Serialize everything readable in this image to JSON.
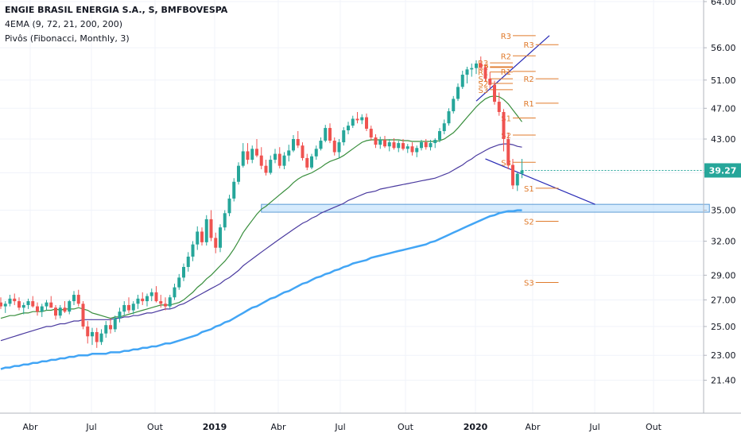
{
  "header": {
    "title": "ENGIE BRASIL ENERGIA S.A., S, BMFBOVESPA",
    "indicator_ema": "4EMA (9, 72, 21, 200, 200)",
    "indicator_pivots": "Pivôs (Fibonacci, Monthly, 3)"
  },
  "colors": {
    "up": "#26a69a",
    "down": "#ef5350",
    "ema_fast": "#f4a9a0",
    "ema_21": "#388e3c",
    "ema_72": "#4a3a9f",
    "ema_200": "#42a5f5",
    "trendline": "#2729b5",
    "pivot": "#e07b2c",
    "zone_fill": "#bbdefb",
    "zone_border": "#5b9bd5",
    "price_label_bg": "#26a69a"
  },
  "chart_data": {
    "type": "candlestick",
    "y_scale": "log",
    "ylim": [
      20.0,
      64.0
    ],
    "y_ticks": [
      "64.00",
      "56.00",
      "51.00",
      "47.00",
      "43.00",
      "39.00",
      "35.00",
      "32.00",
      "29.00",
      "27.00",
      "25.00",
      "23.00",
      "21.40"
    ],
    "x_ticks": [
      "Abr",
      "Jul",
      "Out",
      "2019",
      "Abr",
      "Jul",
      "Out",
      "2020",
      "Abr",
      "Jul",
      "Out"
    ],
    "bold_x_ticks": [
      "2019",
      "2020"
    ],
    "last_price": "39.27",
    "candles": [
      [
        26.8,
        27.2,
        26.3,
        26.5
      ],
      [
        26.5,
        26.9,
        26.0,
        26.7
      ],
      [
        26.7,
        27.4,
        26.5,
        27.1
      ],
      [
        27.1,
        27.5,
        26.6,
        26.9
      ],
      [
        26.9,
        27.2,
        26.2,
        26.4
      ],
      [
        26.4,
        26.8,
        25.9,
        26.6
      ],
      [
        26.6,
        27.1,
        26.3,
        26.9
      ],
      [
        26.9,
        27.3,
        26.4,
        26.5
      ],
      [
        26.5,
        26.8,
        25.8,
        26.1
      ],
      [
        26.1,
        26.7,
        25.7,
        26.5
      ],
      [
        26.5,
        27.0,
        26.2,
        26.8
      ],
      [
        26.8,
        27.3,
        26.4,
        26.4
      ],
      [
        26.4,
        26.6,
        25.5,
        25.8
      ],
      [
        25.8,
        26.6,
        25.6,
        26.4
      ],
      [
        26.4,
        26.9,
        26.0,
        26.1
      ],
      [
        26.1,
        27.0,
        25.9,
        26.9
      ],
      [
        26.9,
        27.7,
        26.6,
        27.4
      ],
      [
        27.4,
        27.8,
        26.5,
        26.7
      ],
      [
        26.7,
        26.9,
        24.8,
        25.0
      ],
      [
        25.0,
        25.4,
        23.8,
        24.3
      ],
      [
        24.3,
        24.9,
        23.7,
        24.6
      ],
      [
        24.6,
        24.9,
        23.5,
        23.9
      ],
      [
        23.9,
        24.8,
        23.7,
        24.5
      ],
      [
        24.5,
        25.4,
        24.2,
        25.1
      ],
      [
        25.1,
        25.6,
        24.5,
        24.8
      ],
      [
        24.8,
        25.8,
        24.6,
        25.6
      ],
      [
        25.6,
        26.4,
        25.3,
        26.1
      ],
      [
        26.1,
        26.9,
        25.8,
        26.6
      ],
      [
        26.6,
        27.2,
        26.0,
        26.2
      ],
      [
        26.2,
        26.9,
        25.9,
        26.7
      ],
      [
        26.7,
        27.4,
        26.3,
        27.1
      ],
      [
        27.1,
        27.6,
        26.6,
        26.9
      ],
      [
        26.9,
        27.5,
        26.5,
        27.3
      ],
      [
        27.3,
        27.9,
        26.9,
        27.6
      ],
      [
        27.6,
        28.1,
        26.8,
        26.9
      ],
      [
        26.9,
        27.4,
        26.4,
        26.7
      ],
      [
        26.7,
        27.2,
        26.2,
        26.5
      ],
      [
        26.5,
        27.4,
        26.3,
        27.2
      ],
      [
        27.2,
        28.3,
        27.0,
        28.0
      ],
      [
        28.0,
        29.1,
        27.8,
        28.8
      ],
      [
        28.8,
        30.0,
        28.5,
        29.7
      ],
      [
        29.7,
        31.0,
        29.3,
        30.6
      ],
      [
        30.6,
        32.0,
        30.2,
        31.7
      ],
      [
        31.7,
        33.4,
        31.2,
        32.9
      ],
      [
        32.9,
        33.3,
        31.6,
        31.9
      ],
      [
        31.9,
        34.5,
        31.6,
        34.1
      ],
      [
        34.1,
        35.0,
        32.0,
        32.3
      ],
      [
        32.3,
        32.8,
        30.9,
        31.4
      ],
      [
        31.4,
        33.6,
        31.0,
        33.3
      ],
      [
        33.3,
        35.0,
        33.0,
        34.7
      ],
      [
        34.7,
        36.6,
        34.4,
        36.2
      ],
      [
        36.2,
        38.4,
        35.9,
        38.0
      ],
      [
        38.0,
        40.2,
        37.7,
        39.8
      ],
      [
        39.8,
        42.5,
        39.6,
        41.5
      ],
      [
        41.5,
        42.5,
        40.0,
        40.5
      ],
      [
        40.5,
        42.2,
        40.1,
        41.8
      ],
      [
        41.8,
        43.0,
        40.8,
        41.0
      ],
      [
        41.0,
        42.0,
        39.4,
        39.8
      ],
      [
        39.8,
        40.5,
        38.7,
        39.0
      ],
      [
        39.0,
        41.0,
        38.8,
        40.5
      ],
      [
        40.5,
        41.8,
        40.1,
        41.2
      ],
      [
        41.2,
        42.0,
        39.5,
        39.8
      ],
      [
        39.8,
        41.4,
        39.4,
        41.0
      ],
      [
        41.0,
        42.3,
        40.3,
        41.6
      ],
      [
        41.6,
        43.5,
        41.4,
        43.0
      ],
      [
        43.0,
        44.0,
        41.9,
        42.2
      ],
      [
        42.2,
        42.6,
        40.4,
        40.7
      ],
      [
        40.7,
        41.2,
        39.3,
        39.6
      ],
      [
        39.6,
        41.2,
        39.4,
        40.9
      ],
      [
        40.9,
        42.2,
        40.5,
        41.8
      ],
      [
        41.8,
        43.2,
        41.6,
        42.8
      ],
      [
        42.8,
        44.8,
        42.6,
        44.4
      ],
      [
        44.4,
        45.0,
        42.5,
        42.8
      ],
      [
        42.8,
        43.2,
        41.0,
        41.4
      ],
      [
        41.4,
        43.0,
        40.7,
        42.6
      ],
      [
        42.6,
        44.5,
        42.2,
        44.1
      ],
      [
        44.1,
        45.2,
        43.6,
        44.7
      ],
      [
        44.7,
        46.0,
        44.4,
        45.6
      ],
      [
        45.6,
        46.5,
        45.0,
        45.4
      ],
      [
        45.4,
        46.2,
        44.9,
        45.8
      ],
      [
        45.8,
        46.3,
        44.0,
        44.3
      ],
      [
        44.3,
        44.7,
        42.8,
        43.2
      ],
      [
        43.2,
        43.6,
        41.9,
        42.3
      ],
      [
        42.3,
        43.3,
        41.8,
        42.9
      ],
      [
        42.9,
        43.4,
        41.9,
        42.1
      ],
      [
        42.1,
        43.0,
        41.5,
        42.6
      ],
      [
        42.6,
        43.1,
        41.7,
        41.9
      ],
      [
        41.9,
        42.8,
        41.4,
        42.5
      ],
      [
        42.5,
        43.0,
        41.6,
        41.8
      ],
      [
        41.8,
        42.4,
        41.3,
        42.1
      ],
      [
        42.1,
        42.6,
        41.0,
        41.4
      ],
      [
        41.4,
        42.2,
        40.8,
        41.9
      ],
      [
        41.9,
        42.9,
        41.6,
        42.6
      ],
      [
        42.6,
        43.0,
        41.7,
        42.0
      ],
      [
        42.0,
        42.9,
        41.6,
        42.5
      ],
      [
        42.5,
        43.1,
        41.9,
        42.9
      ],
      [
        42.9,
        44.4,
        42.6,
        44.0
      ],
      [
        44.0,
        45.5,
        43.6,
        45.0
      ],
      [
        45.0,
        47.0,
        44.7,
        46.6
      ],
      [
        46.6,
        48.7,
        46.3,
        48.3
      ],
      [
        48.3,
        50.5,
        48.0,
        50.0
      ],
      [
        50.0,
        52.4,
        49.7,
        51.8
      ],
      [
        51.8,
        53.0,
        50.5,
        52.6
      ],
      [
        52.6,
        53.5,
        51.5,
        52.8
      ],
      [
        52.8,
        54.0,
        51.9,
        53.5
      ],
      [
        53.5,
        54.6,
        52.4,
        52.9
      ],
      [
        52.9,
        53.4,
        50.8,
        51.2
      ],
      [
        51.2,
        52.2,
        49.8,
        50.3
      ],
      [
        50.3,
        50.9,
        47.5,
        47.9
      ],
      [
        47.9,
        49.2,
        46.0,
        46.5
      ],
      [
        46.5,
        46.9,
        41.5,
        43.0
      ],
      [
        43.0,
        43.8,
        39.4,
        39.9
      ],
      [
        39.9,
        40.6,
        37.2,
        37.6
      ],
      [
        37.6,
        39.0,
        37.0,
        38.9
      ],
      [
        38.9,
        40.6,
        38.4,
        39.27
      ]
    ],
    "ema_21": [
      25.6,
      25.7,
      25.8,
      25.8,
      25.9,
      26.0,
      26.0,
      26.1,
      26.1,
      26.1,
      26.2,
      26.2,
      26.3,
      26.2,
      26.3,
      26.3,
      26.3,
      26.4,
      26.3,
      26.2,
      26.0,
      25.9,
      25.8,
      25.7,
      25.6,
      25.7,
      25.7,
      25.8,
      25.9,
      26.0,
      26.1,
      26.2,
      26.3,
      26.4,
      26.5,
      26.6,
      26.6,
      26.6,
      26.7,
      26.8,
      27.0,
      27.3,
      27.6,
      28.0,
      28.3,
      28.7,
      29.0,
      29.4,
      29.8,
      30.2,
      30.7,
      31.3,
      32.0,
      32.8,
      33.4,
      34.0,
      34.6,
      35.1,
      35.4,
      35.8,
      36.2,
      36.6,
      37.0,
      37.4,
      37.9,
      38.3,
      38.6,
      38.8,
      39.0,
      39.3,
      39.6,
      40.0,
      40.3,
      40.5,
      40.7,
      41.0,
      41.4,
      41.8,
      42.2,
      42.6,
      42.8,
      42.9,
      42.9,
      42.9,
      42.9,
      42.9,
      42.9,
      42.9,
      42.8,
      42.8,
      42.7,
      42.7,
      42.7,
      42.7,
      42.7,
      42.7,
      42.8,
      43.0,
      43.4,
      43.8,
      44.4,
      45.1,
      45.8,
      46.5,
      47.2,
      47.8,
      48.3,
      48.6,
      48.7,
      48.6,
      48.2,
      47.6,
      46.8,
      46.0,
      45.2
    ],
    "ema_72": [
      24.0,
      24.1,
      24.2,
      24.3,
      24.4,
      24.5,
      24.6,
      24.7,
      24.8,
      24.9,
      25.0,
      25.0,
      25.1,
      25.2,
      25.2,
      25.3,
      25.4,
      25.4,
      25.5,
      25.5,
      25.5,
      25.5,
      25.5,
      25.5,
      25.5,
      25.6,
      25.6,
      25.7,
      25.7,
      25.8,
      25.8,
      25.9,
      26.0,
      26.0,
      26.1,
      26.2,
      26.3,
      26.3,
      26.4,
      26.6,
      26.7,
      26.9,
      27.1,
      27.3,
      27.5,
      27.7,
      27.9,
      28.1,
      28.3,
      28.6,
      28.8,
      29.1,
      29.4,
      29.8,
      30.1,
      30.4,
      30.7,
      31.0,
      31.3,
      31.6,
      31.9,
      32.2,
      32.5,
      32.8,
      33.1,
      33.4,
      33.7,
      33.9,
      34.2,
      34.4,
      34.7,
      34.9,
      35.1,
      35.3,
      35.5,
      35.7,
      36.0,
      36.2,
      36.4,
      36.6,
      36.8,
      36.9,
      37.0,
      37.2,
      37.3,
      37.4,
      37.5,
      37.6,
      37.7,
      37.8,
      37.9,
      38.0,
      38.1,
      38.2,
      38.3,
      38.4,
      38.6,
      38.8,
      39.0,
      39.3,
      39.6,
      39.9,
      40.3,
      40.6,
      41.0,
      41.3,
      41.6,
      41.9,
      42.1,
      42.3,
      42.4,
      42.4,
      42.3,
      42.1,
      42.0
    ],
    "ema_200": [
      22.1,
      22.2,
      22.2,
      22.3,
      22.3,
      22.4,
      22.4,
      22.5,
      22.5,
      22.6,
      22.6,
      22.7,
      22.7,
      22.8,
      22.8,
      22.9,
      22.9,
      23.0,
      23.0,
      23.0,
      23.1,
      23.1,
      23.1,
      23.1,
      23.2,
      23.2,
      23.2,
      23.3,
      23.3,
      23.4,
      23.4,
      23.5,
      23.5,
      23.6,
      23.6,
      23.7,
      23.8,
      23.8,
      23.9,
      24.0,
      24.1,
      24.2,
      24.3,
      24.4,
      24.6,
      24.7,
      24.8,
      25.0,
      25.1,
      25.3,
      25.4,
      25.6,
      25.8,
      26.0,
      26.2,
      26.4,
      26.5,
      26.7,
      26.9,
      27.1,
      27.2,
      27.4,
      27.6,
      27.7,
      27.9,
      28.1,
      28.3,
      28.4,
      28.6,
      28.8,
      28.9,
      29.1,
      29.2,
      29.4,
      29.5,
      29.7,
      29.8,
      30.0,
      30.1,
      30.2,
      30.3,
      30.5,
      30.6,
      30.7,
      30.8,
      30.9,
      31.0,
      31.1,
      31.2,
      31.3,
      31.4,
      31.5,
      31.6,
      31.7,
      31.9,
      32.0,
      32.2,
      32.4,
      32.6,
      32.8,
      33.0,
      33.2,
      33.4,
      33.6,
      33.8,
      34.0,
      34.2,
      34.4,
      34.5,
      34.7,
      34.8,
      34.9,
      34.9,
      35.0,
      35.0
    ],
    "trendlines": [
      {
        "x1": 104,
        "y1": 48.0,
        "x2": 120,
        "y2": 58.0
      },
      {
        "x1": 106,
        "y1": 40.6,
        "x2": 130,
        "y2": 35.6
      }
    ],
    "support_zone": {
      "x_start": 57,
      "x_end": 155,
      "y_low": 34.8,
      "y_high": 35.6
    },
    "pivot_levels": [
      {
        "label": "R3",
        "x1": 107,
        "x2": 112,
        "y": 53.6
      },
      {
        "label": "P",
        "x1": 107,
        "x2": 112,
        "y": 52.9
      },
      {
        "label": "R2",
        "x1": 107,
        "x2": 112,
        "y": 53.0
      },
      {
        "label": "R1",
        "x1": 107,
        "x2": 112,
        "y": 52.2
      },
      {
        "label": "S1",
        "x1": 107,
        "x2": 112,
        "y": 51.2
      },
      {
        "label": "S2",
        "x1": 107,
        "x2": 112,
        "y": 50.5
      },
      {
        "label": "S3",
        "x1": 107,
        "x2": 112,
        "y": 49.6
      },
      {
        "label": "R3",
        "x1": 112,
        "x2": 117,
        "y": 58.0
      },
      {
        "label": "R2",
        "x1": 112,
        "x2": 117,
        "y": 54.7
      },
      {
        "label": "R1",
        "x1": 112,
        "x2": 117,
        "y": 52.3
      },
      {
        "label": "S1",
        "x1": 112,
        "x2": 117,
        "y": 45.7
      },
      {
        "label": "S2",
        "x1": 112,
        "x2": 117,
        "y": 43.5
      },
      {
        "label": "S3",
        "x1": 112,
        "x2": 117,
        "y": 40.2
      },
      {
        "label": "R3",
        "x1": 117,
        "x2": 122,
        "y": 56.5
      },
      {
        "label": "R2",
        "x1": 117,
        "x2": 122,
        "y": 51.2
      },
      {
        "label": "R1",
        "x1": 117,
        "x2": 122,
        "y": 47.7
      },
      {
        "label": "S1",
        "x1": 117,
        "x2": 122,
        "y": 37.3
      },
      {
        "label": "S2",
        "x1": 117,
        "x2": 122,
        "y": 33.9
      },
      {
        "label": "S3",
        "x1": 117,
        "x2": 122,
        "y": 28.4
      }
    ]
  }
}
